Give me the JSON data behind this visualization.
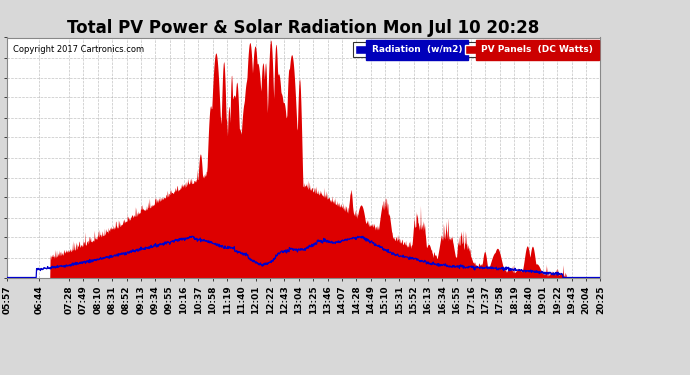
{
  "title": "Total PV Power & Solar Radiation Mon Jul 10 20:28",
  "copyright": "Copyright 2017 Cartronics.com",
  "legend_labels": [
    "Radiation  (w/m2)",
    "PV Panels  (DC Watts)"
  ],
  "legend_bg_colors": [
    "#0000bb",
    "#cc0000"
  ],
  "ymax": 3828.5,
  "yticks": [
    0.0,
    319.0,
    638.1,
    957.1,
    1276.2,
    1595.2,
    1914.2,
    2233.3,
    2552.3,
    2871.4,
    3190.4,
    3509.4,
    3828.5
  ],
  "background_color": "#d8d8d8",
  "plot_bg_color": "#ffffff",
  "grid_color": "#aaaaaa",
  "fill_color_pv": "#dd0000",
  "line_color_radiation": "#0000cc",
  "title_fontsize": 12,
  "tick_fontsize": 6.5,
  "xtick_labels": [
    "05:57",
    "06:44",
    "07:28",
    "07:49",
    "08:10",
    "08:31",
    "08:52",
    "09:13",
    "09:34",
    "09:55",
    "10:16",
    "10:37",
    "10:58",
    "11:19",
    "11:40",
    "12:01",
    "12:22",
    "12:43",
    "13:04",
    "13:25",
    "13:46",
    "14:07",
    "14:28",
    "14:49",
    "15:10",
    "15:31",
    "15:52",
    "16:13",
    "16:34",
    "16:55",
    "17:16",
    "17:37",
    "17:58",
    "18:19",
    "18:40",
    "19:01",
    "19:22",
    "19:43",
    "20:04",
    "20:25"
  ]
}
